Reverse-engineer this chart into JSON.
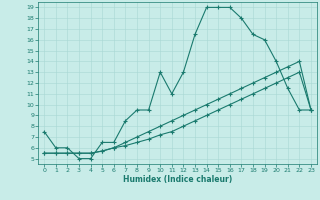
{
  "bg_color": "#c8ece8",
  "line_color": "#1a7a6e",
  "grid_color": "#a8d8d4",
  "xlabel": "Humidex (Indice chaleur)",
  "xlim": [
    -0.5,
    23.5
  ],
  "ylim": [
    4.5,
    19.5
  ],
  "xticks": [
    0,
    1,
    2,
    3,
    4,
    5,
    6,
    7,
    8,
    9,
    10,
    11,
    12,
    13,
    14,
    15,
    16,
    17,
    18,
    19,
    20,
    21,
    22,
    23
  ],
  "yticks": [
    5,
    6,
    7,
    8,
    9,
    10,
    11,
    12,
    13,
    14,
    15,
    16,
    17,
    18,
    19
  ],
  "line1_x": [
    0,
    1,
    2,
    3,
    4,
    5,
    6,
    7,
    8,
    9,
    10,
    11,
    12,
    13,
    14,
    15,
    16,
    17,
    18,
    19,
    20,
    21,
    22,
    23
  ],
  "line1_y": [
    7.5,
    6.0,
    6.0,
    5.0,
    5.0,
    6.5,
    6.5,
    8.5,
    9.5,
    9.5,
    13.0,
    11.0,
    13.0,
    16.5,
    19.0,
    19.0,
    19.0,
    18.0,
    16.5,
    16.0,
    14.0,
    11.5,
    9.5,
    9.5
  ],
  "line2_x": [
    0,
    1,
    2,
    3,
    4,
    5,
    6,
    7,
    8,
    9,
    10,
    11,
    12,
    13,
    14,
    15,
    16,
    17,
    18,
    19,
    20,
    21,
    22,
    23
  ],
  "line2_y": [
    5.5,
    5.5,
    5.5,
    5.5,
    5.5,
    5.7,
    6.0,
    6.2,
    6.5,
    6.8,
    7.2,
    7.5,
    8.0,
    8.5,
    9.0,
    9.5,
    10.0,
    10.5,
    11.0,
    11.5,
    12.0,
    12.5,
    13.0,
    9.5
  ],
  "line3_x": [
    0,
    1,
    2,
    3,
    4,
    5,
    6,
    7,
    8,
    9,
    10,
    11,
    12,
    13,
    14,
    15,
    16,
    17,
    18,
    19,
    20,
    21,
    22,
    23
  ],
  "line3_y": [
    5.5,
    5.5,
    5.5,
    5.5,
    5.5,
    5.7,
    6.0,
    6.5,
    7.0,
    7.5,
    8.0,
    8.5,
    9.0,
    9.5,
    10.0,
    10.5,
    11.0,
    11.5,
    12.0,
    12.5,
    13.0,
    13.5,
    14.0,
    9.5
  ]
}
